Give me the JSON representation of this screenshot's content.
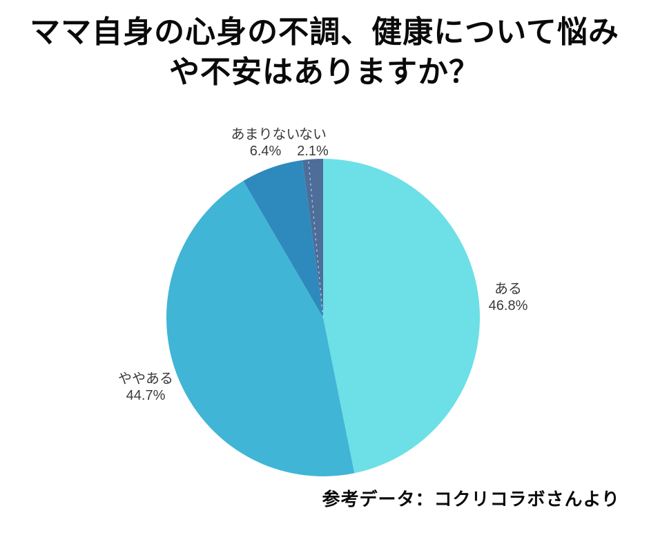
{
  "title": {
    "line1": "ママ自身の心身の不調、健康について悩み",
    "line2": "や不安はありますか？"
  },
  "chart_data": {
    "type": "pie",
    "title": "ママ自身の心身の不調、健康について悩みや不安はありますか？",
    "start_angle": "12-o-clock",
    "direction": "clockwise",
    "legend_position": "labels-around-pie",
    "slices": [
      {
        "label": "ある",
        "value": 46.8,
        "display": "46.8%",
        "color": "#6ce0e6"
      },
      {
        "label": "ややある",
        "value": 44.7,
        "display": "44.7%",
        "color": "#41b5d6"
      },
      {
        "label": "あまりない",
        "value": 6.4,
        "display": "6.4%",
        "color": "#2e8abc"
      },
      {
        "label": "ない",
        "value": 2.1,
        "display": "2.1%",
        "color": "#4e6d99"
      }
    ],
    "source_note": "参考データ：コクリコラボさんより"
  }
}
